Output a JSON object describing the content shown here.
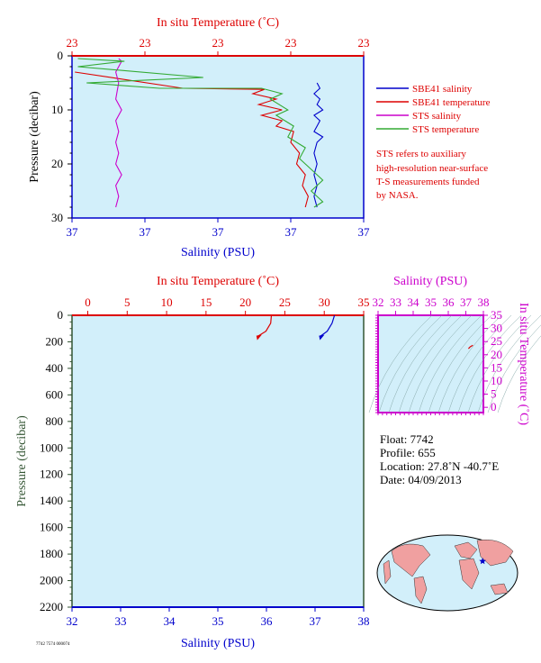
{
  "colors": {
    "salinity": "#0000cc",
    "temperature": "#dd0000",
    "sts_salinity": "#cc00cc",
    "sts_temperature": "#33aa33",
    "plot_bg": "#d2effa",
    "pressure_label": "#335533",
    "map_land": "#f0a0a0",
    "map_ocean": "#d2effa"
  },
  "chart_data": [
    {
      "id": "top",
      "type": "line",
      "top_axis_label": "In situ Temperature (˚C)",
      "top_ticks": [
        "23",
        "23",
        "23",
        "23",
        "23"
      ],
      "bottom_axis_label": "Salinity (PSU)",
      "bottom_ticks": [
        "37",
        "37",
        "37",
        "37",
        "37"
      ],
      "left_axis_label": "Pressure (decibar)",
      "left_ticks": [
        "0",
        "10",
        "20",
        "30"
      ],
      "ylim": [
        0,
        30
      ],
      "x_scale_note": "tick labels rounded; all values shown as the labels print",
      "legend": [
        {
          "name": "SBE41 salinity",
          "color_key": "salinity"
        },
        {
          "name": "SBE41 temperature",
          "color_key": "temperature"
        },
        {
          "name": "STS salinity",
          "color_key": "sts_salinity"
        },
        {
          "name": "STS temperature",
          "color_key": "sts_temperature"
        }
      ],
      "note": [
        "STS refers to auxiliary",
        "high-resolution near-surface",
        "T-S measurements funded",
        "by NASA."
      ],
      "series": [
        {
          "name": "SBE41 salinity",
          "color_key": "salinity",
          "points": [
            [
              0.84,
              5
            ],
            [
              0.85,
              6
            ],
            [
              0.83,
              7
            ],
            [
              0.85,
              8
            ],
            [
              0.84,
              9
            ],
            [
              0.86,
              10
            ],
            [
              0.83,
              11
            ],
            [
              0.85,
              12
            ],
            [
              0.84,
              13
            ],
            [
              0.83,
              14
            ],
            [
              0.86,
              15
            ],
            [
              0.84,
              16
            ],
            [
              0.83,
              18
            ],
            [
              0.84,
              20
            ],
            [
              0.83,
              22
            ],
            [
              0.84,
              24
            ],
            [
              0.83,
              26
            ],
            [
              0.84,
              28
            ]
          ]
        },
        {
          "name": "SBE41 temperature",
          "color_key": "temperature",
          "points": [
            [
              0.01,
              3
            ],
            [
              0.38,
              6
            ],
            [
              0.66,
              6.2
            ],
            [
              0.62,
              7
            ],
            [
              0.7,
              8
            ],
            [
              0.64,
              9
            ],
            [
              0.72,
              10
            ],
            [
              0.65,
              11
            ],
            [
              0.72,
              12
            ],
            [
              0.7,
              13
            ],
            [
              0.76,
              14
            ],
            [
              0.75,
              16
            ],
            [
              0.78,
              18
            ],
            [
              0.77,
              20
            ],
            [
              0.8,
              22
            ],
            [
              0.79,
              24
            ],
            [
              0.81,
              26
            ],
            [
              0.8,
              28
            ]
          ]
        },
        {
          "name": "STS salinity",
          "color_key": "sts_salinity",
          "points": [
            [
              0.16,
              0.5
            ],
            [
              0.17,
              1
            ],
            [
              0.15,
              3
            ],
            [
              0.16,
              5
            ],
            [
              0.15,
              8
            ],
            [
              0.17,
              10
            ],
            [
              0.15,
              12
            ],
            [
              0.16,
              14
            ],
            [
              0.15,
              16
            ],
            [
              0.16,
              18
            ],
            [
              0.15,
              20
            ],
            [
              0.17,
              22
            ],
            [
              0.15,
              24
            ],
            [
              0.16,
              26
            ],
            [
              0.15,
              28
            ]
          ]
        },
        {
          "name": "STS temperature",
          "color_key": "sts_temperature",
          "points": [
            [
              0.02,
              0.5
            ],
            [
              0.18,
              1
            ],
            [
              0.02,
              2
            ],
            [
              0.45,
              4
            ],
            [
              0.05,
              5
            ],
            [
              0.3,
              6
            ],
            [
              0.65,
              6
            ],
            [
              0.72,
              7
            ],
            [
              0.68,
              8
            ],
            [
              0.74,
              10
            ],
            [
              0.7,
              11
            ],
            [
              0.76,
              13
            ],
            [
              0.74,
              15
            ],
            [
              0.8,
              17
            ],
            [
              0.78,
              19
            ],
            [
              0.82,
              21
            ],
            [
              0.86,
              23
            ],
            [
              0.82,
              25
            ],
            [
              0.86,
              27
            ],
            [
              0.83,
              28
            ]
          ]
        }
      ]
    },
    {
      "id": "bottom",
      "type": "line",
      "top_axis_label": "In situ Temperature (˚C)",
      "top_ticks": [
        "0",
        "5",
        "10",
        "15",
        "20",
        "25",
        "30",
        "35"
      ],
      "xlim_temperature": [
        -2,
        35
      ],
      "bottom_axis_label": "Salinity (PSU)",
      "bottom_ticks": [
        "32",
        "33",
        "34",
        "35",
        "36",
        "37",
        "38"
      ],
      "xlim_salinity": [
        32,
        38
      ],
      "left_axis_label": "Pressure (decibar)",
      "left_ticks": [
        "0",
        "200",
        "400",
        "600",
        "800",
        "1000",
        "1200",
        "1400",
        "1600",
        "1800",
        "2000",
        "2200"
      ],
      "ylim": [
        0,
        2200
      ],
      "series": [
        {
          "name": "temperature",
          "color_key": "temperature",
          "points_temperature": [
            [
              23.3,
              0
            ],
            [
              23.2,
              60
            ],
            [
              22.6,
              120
            ],
            [
              21.5,
              160
            ]
          ]
        },
        {
          "name": "salinity",
          "color_key": "salinity",
          "points_salinity": [
            [
              37.4,
              0
            ],
            [
              37.35,
              60
            ],
            [
              37.25,
              120
            ],
            [
              37.1,
              160
            ]
          ]
        }
      ]
    },
    {
      "id": "ts",
      "type": "scatter",
      "top_axis_label": "Salinity (PSU)",
      "top_ticks": [
        "32",
        "33",
        "34",
        "35",
        "36",
        "37",
        "38"
      ],
      "xlim": [
        32,
        38
      ],
      "right_axis_label": "In situ Temperature (˚C)",
      "right_ticks": [
        "0",
        "5",
        "10",
        "15",
        "20",
        "25",
        "30",
        "35"
      ],
      "ylim": [
        -2,
        35
      ],
      "points": [
        [
          37.15,
          22.3
        ],
        [
          37.25,
          23.0
        ],
        [
          37.35,
          23.4
        ],
        [
          37.4,
          23.6
        ]
      ]
    }
  ],
  "info": {
    "float": "Float:  7742",
    "profile": "Profile:  655",
    "location": "Location:  27.8˚N  -40.7˚E",
    "date": "Date:  04/09/2013"
  },
  "map": {
    "float_lat": 27.8,
    "float_lon": -40.7
  },
  "footer_id": "7742 7574 000074"
}
